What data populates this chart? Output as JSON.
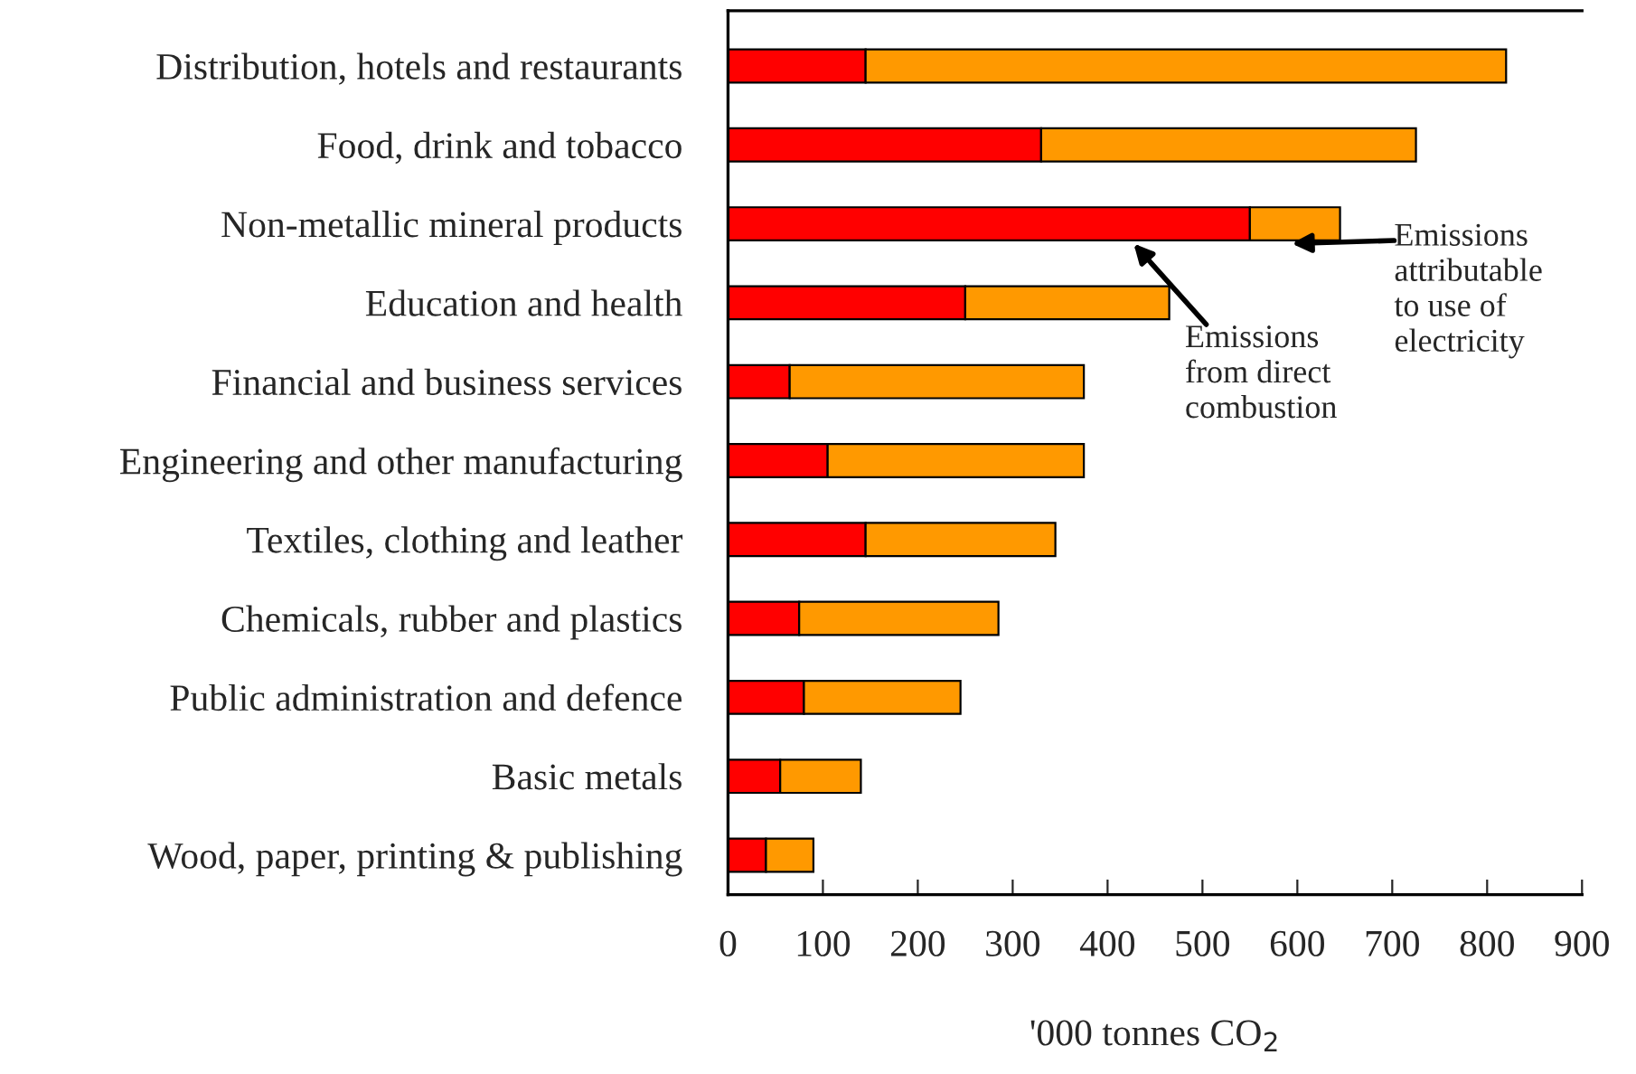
{
  "chart_data": {
    "type": "bar",
    "orientation": "horizontal",
    "stacked": true,
    "xlabel": "'000 tonnes CO$_{2}$",
    "categories": [
      "Distribution, hotels and restaurants",
      "Food, drink and tobacco",
      "Non-metallic mineral products",
      "Education and health",
      "Financial and business services",
      "Engineering and other manufacturing",
      "Textiles, clothing and leather",
      "Chemicals, rubber and plastics",
      "Public administration and defence",
      "Basic metals",
      "Wood, paper, printing & publishing"
    ],
    "series": [
      {
        "color": "#ff0000",
        "values": [
          145,
          330,
          550,
          250,
          65,
          105,
          145,
          75,
          80,
          55,
          40
        ]
      },
      {
        "color": "#ff9900",
        "values": [
          675,
          395,
          95,
          215,
          310,
          270,
          200,
          210,
          165,
          85,
          50
        ]
      }
    ],
    "xlim": [
      0,
      900
    ],
    "xticks": [
      0,
      100,
      200,
      300,
      400,
      500,
      600,
      700,
      800,
      900
    ],
    "grid": false,
    "legend": false,
    "annotations": [
      "Emissions\nfrom direct\ncombustion",
      "Emissions\nattributable\nto use of\nelectricity"
    ]
  }
}
